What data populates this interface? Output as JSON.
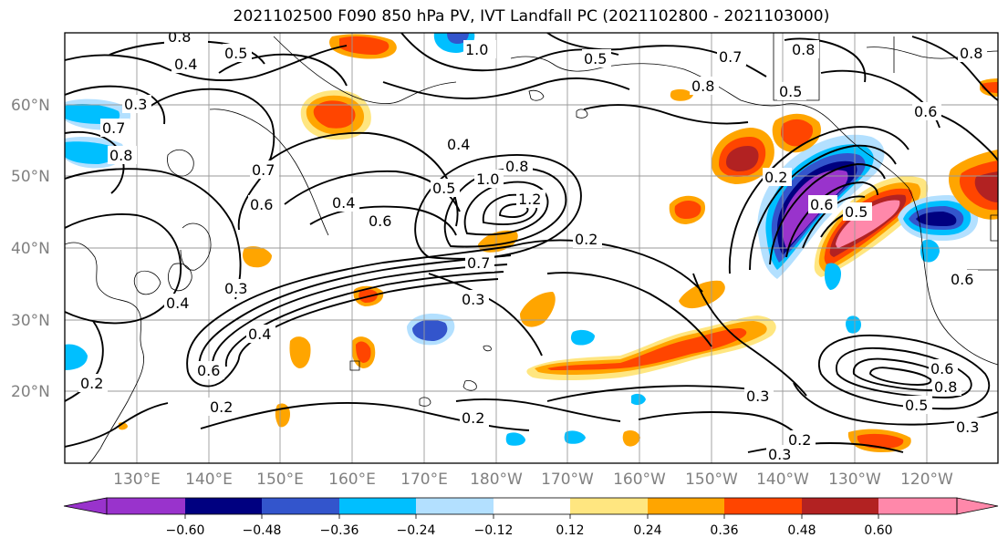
{
  "title": "2021102500 F090 850 hPa PV, IVT Landfall PC (2021102800 - 2021103000)",
  "lat_labels": [
    "60°N",
    "50°N",
    "40°N",
    "30°N",
    "20°N"
  ],
  "lon_labels": [
    "130°E",
    "140°E",
    "150°E",
    "160°E",
    "170°E",
    "180°W",
    "170°W",
    "160°W",
    "150°W",
    "140°W",
    "130°W",
    "120°W"
  ],
  "colorbar": {
    "ticks": [
      "−0.60",
      "−0.48",
      "−0.36",
      "−0.24",
      "−0.12",
      "0.12",
      "0.24",
      "0.36",
      "0.48",
      "0.60"
    ],
    "colors": [
      "#9933cc",
      "#000080",
      "#3355cc",
      "#00bfff",
      "#b3e0ff",
      "#ffffff",
      "#ffe680",
      "#ffa500",
      "#ff4500",
      "#b22222",
      "#ff88aa"
    ]
  },
  "contour_labels": [
    "0.8",
    "0.4",
    "0.5",
    "1.0",
    "0.5",
    "0.7",
    "0.8",
    "0.8",
    "0.5",
    "0.6",
    "0.3",
    "0.7",
    "0.8",
    "0.7",
    "0.6",
    "0.4",
    "0.4",
    "0.5",
    "1.0",
    "0.8",
    "1.2",
    "0.6",
    "0.2",
    "0.7",
    "0.3",
    "0.4",
    "0.3",
    "0.4",
    "0.6",
    "0.2",
    "0.2",
    "0.2",
    "0.3",
    "0.2",
    "0.3",
    "0.2",
    "0.6",
    "0.5",
    "0.6",
    "0.8",
    "0.5",
    "0.3",
    "0.8",
    "0.6"
  ]
}
